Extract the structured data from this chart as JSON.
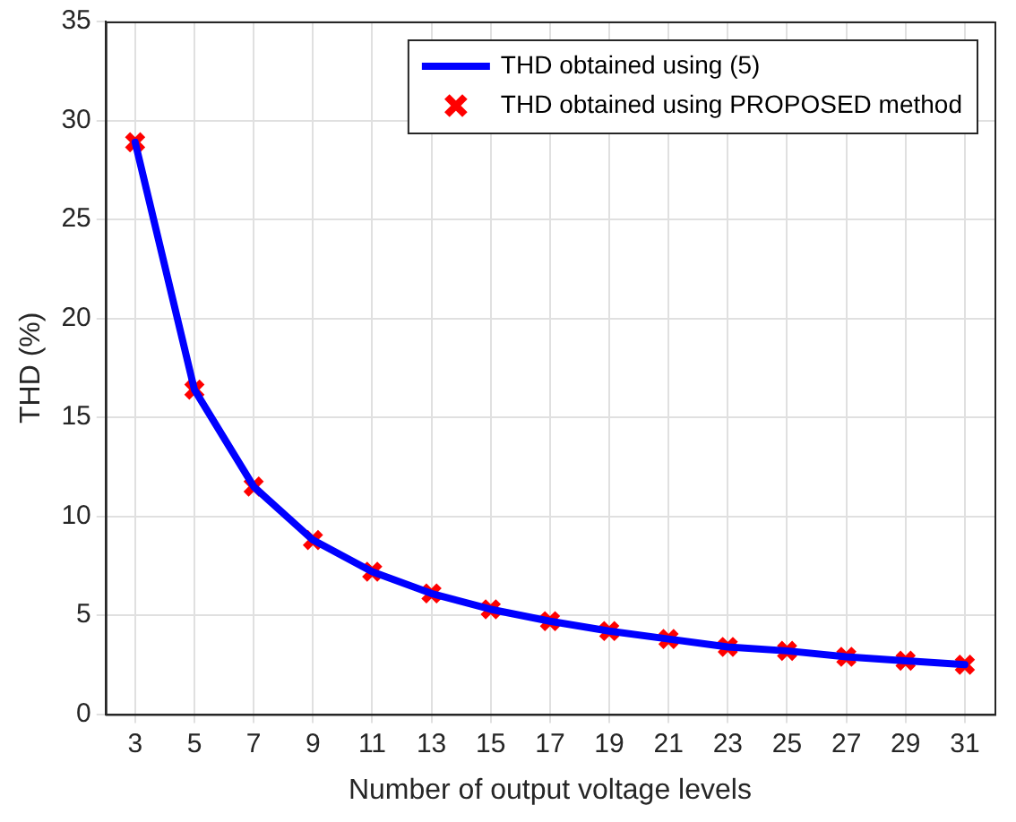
{
  "chart_data": {
    "type": "line",
    "xlabel": "Number of output voltage levels",
    "ylabel": "THD (%)",
    "x": [
      3,
      5,
      7,
      9,
      11,
      13,
      15,
      17,
      19,
      21,
      23,
      25,
      27,
      29,
      31
    ],
    "xlim": [
      2,
      32
    ],
    "xticks": [
      3,
      5,
      7,
      9,
      11,
      13,
      15,
      17,
      19,
      21,
      23,
      25,
      27,
      29,
      31
    ],
    "ylim": [
      0,
      35
    ],
    "yticks": [
      0,
      5,
      10,
      15,
      20,
      25,
      30,
      35
    ],
    "series": [
      {
        "name": "THD obtained using (5)",
        "color": "#0000ff",
        "marker": "none",
        "values": [
          28.9,
          16.4,
          11.5,
          8.8,
          7.2,
          6.1,
          5.3,
          4.7,
          4.2,
          3.8,
          3.4,
          3.2,
          2.9,
          2.7,
          2.5
        ]
      },
      {
        "name": "THD obtained using PROPOSED method",
        "type": "scatter",
        "color": "#ff0000",
        "marker": "cross",
        "values": [
          28.9,
          16.4,
          11.5,
          8.8,
          7.2,
          6.1,
          5.3,
          4.7,
          4.2,
          3.8,
          3.4,
          3.2,
          2.9,
          2.7,
          2.5
        ]
      }
    ],
    "grid": true,
    "legend": "top right"
  }
}
